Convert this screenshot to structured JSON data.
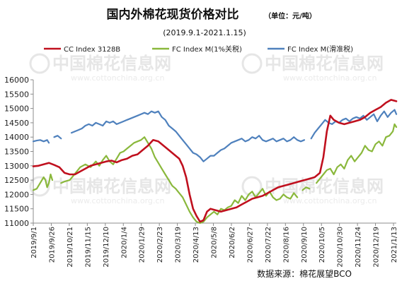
{
  "watermark": {
    "text": "中国棉花信息网",
    "url": "www.cottonchina.org.cn"
  },
  "chart_data": {
    "type": "line",
    "title": "国内外棉花现货价格对比",
    "unit_label": "（单位：元/吨）",
    "subtitle": "(2019.9.1-2021.1.15)",
    "source": "数据来源：棉花展望BCO",
    "ylim": [
      11000,
      16000
    ],
    "yticks": [
      11000,
      11500,
      12000,
      12500,
      13000,
      13500,
      14000,
      14500,
      15000,
      15500,
      16000
    ],
    "grid": false,
    "legend_position": "top",
    "x_tick_labels": [
      "2019/9/1",
      "2019/9/26",
      "2019/10/21",
      "2019/11/15",
      "2019/12/10",
      "2020/1/4",
      "2020/1/29",
      "2020/2/23",
      "2020/3/19",
      "2020/4/13",
      "2020/5/8",
      "2020/6/2",
      "2020/6/27",
      "2020/7/22",
      "2020/8/16",
      "2020/9/10",
      "2020/10/5",
      "2020/10/30",
      "2020/11/24",
      "2020/12/19",
      "2021/1/13"
    ],
    "series": [
      {
        "name": "CC Index 3128B",
        "color": "#c0101e",
        "width": 2.6,
        "points": [
          [
            0,
            12980
          ],
          [
            3,
            13000
          ],
          [
            6,
            13050
          ],
          [
            9,
            13100
          ],
          [
            12,
            13030
          ],
          [
            15,
            12950
          ],
          [
            18,
            12750
          ],
          [
            21,
            12700
          ],
          [
            24,
            12700
          ],
          [
            27,
            12800
          ],
          [
            30,
            12900
          ],
          [
            33,
            13000
          ],
          [
            36,
            13050
          ],
          [
            39,
            13100
          ],
          [
            42,
            13150
          ],
          [
            45,
            13180
          ],
          [
            48,
            13120
          ],
          [
            51,
            13200
          ],
          [
            54,
            13250
          ],
          [
            57,
            13350
          ],
          [
            60,
            13400
          ],
          [
            63,
            13550
          ],
          [
            66,
            13700
          ],
          [
            69,
            13900
          ],
          [
            72,
            13850
          ],
          [
            75,
            13700
          ],
          [
            78,
            13550
          ],
          [
            81,
            13400
          ],
          [
            84,
            13250
          ],
          [
            86,
            13000
          ],
          [
            88,
            12600
          ],
          [
            90,
            12000
          ],
          [
            92,
            11500
          ],
          [
            94,
            11250
          ],
          [
            96,
            11050
          ],
          [
            98,
            11100
          ],
          [
            100,
            11400
          ],
          [
            102,
            11500
          ],
          [
            105,
            11450
          ],
          [
            108,
            11400
          ],
          [
            111,
            11450
          ],
          [
            114,
            11500
          ],
          [
            117,
            11550
          ],
          [
            120,
            11650
          ],
          [
            123,
            11750
          ],
          [
            126,
            11850
          ],
          [
            129,
            11900
          ],
          [
            132,
            11950
          ],
          [
            135,
            12050
          ],
          [
            138,
            12150
          ],
          [
            141,
            12250
          ],
          [
            144,
            12300
          ],
          [
            147,
            12350
          ],
          [
            150,
            12400
          ],
          [
            153,
            12450
          ],
          [
            156,
            12500
          ],
          [
            159,
            12550
          ],
          [
            162,
            12600
          ],
          [
            165,
            12750
          ],
          [
            167,
            13300
          ],
          [
            169,
            14200
          ],
          [
            171,
            14750
          ],
          [
            173,
            14600
          ],
          [
            176,
            14500
          ],
          [
            179,
            14450
          ],
          [
            182,
            14500
          ],
          [
            185,
            14550
          ],
          [
            188,
            14600
          ],
          [
            191,
            14700
          ],
          [
            194,
            14850
          ],
          [
            197,
            14950
          ],
          [
            200,
            15050
          ],
          [
            203,
            15200
          ],
          [
            206,
            15300
          ],
          [
            209,
            15250
          ]
        ]
      },
      {
        "name": "FC Index M(1%关税)",
        "color": "#8ab83c",
        "width": 2.2,
        "segments": [
          [
            [
              0,
              12150
            ],
            [
              2,
              12200
            ],
            [
              4,
              12400
            ],
            [
              6,
              12600
            ],
            [
              7,
              12500
            ],
            [
              8,
              12250
            ],
            [
              9,
              12400
            ],
            [
              10,
              12700
            ],
            [
              11,
              12500
            ]
          ],
          [
            [
              16,
              12400
            ],
            [
              18,
              12450
            ],
            [
              21,
              12500
            ],
            [
              23,
              12650
            ],
            [
              25,
              12800
            ],
            [
              27,
              12950
            ],
            [
              30,
              13050
            ],
            [
              33,
              12950
            ],
            [
              36,
              13150
            ],
            [
              38,
              13000
            ],
            [
              40,
              13200
            ],
            [
              42,
              13350
            ],
            [
              44,
              13150
            ],
            [
              46,
              13050
            ],
            [
              48,
              13250
            ],
            [
              50,
              13450
            ],
            [
              52,
              13500
            ],
            [
              54,
              13600
            ],
            [
              56,
              13700
            ],
            [
              58,
              13800
            ],
            [
              60,
              13850
            ],
            [
              62,
              13900
            ],
            [
              64,
              14000
            ],
            [
              66,
              13800
            ],
            [
              68,
              13600
            ],
            [
              70,
              13300
            ],
            [
              72,
              13100
            ],
            [
              74,
              12900
            ],
            [
              76,
              12700
            ],
            [
              78,
              12500
            ],
            [
              80,
              12300
            ],
            [
              82,
              12200
            ],
            [
              84,
              12050
            ],
            [
              86,
              11900
            ],
            [
              88,
              11650
            ],
            [
              90,
              11400
            ],
            [
              92,
              11200
            ],
            [
              94,
              11050
            ],
            [
              96,
              11000
            ],
            [
              98,
              11050
            ],
            [
              100,
              11200
            ],
            [
              102,
              11300
            ],
            [
              104,
              11400
            ],
            [
              106,
              11300
            ],
            [
              108,
              11500
            ],
            [
              110,
              11450
            ],
            [
              112,
              11550
            ],
            [
              114,
              11600
            ],
            [
              116,
              11800
            ],
            [
              118,
              11700
            ],
            [
              120,
              11950
            ],
            [
              122,
              11800
            ],
            [
              124,
              12000
            ],
            [
              126,
              12100
            ],
            [
              128,
              11900
            ],
            [
              130,
              12050
            ],
            [
              132,
              12200
            ],
            [
              134,
              11950
            ],
            [
              136,
              12100
            ],
            [
              138,
              11900
            ],
            [
              140,
              11800
            ],
            [
              142,
              11850
            ],
            [
              144,
              12000
            ],
            [
              146,
              11900
            ],
            [
              148,
              11850
            ],
            [
              150,
              12050
            ],
            [
              152,
              11900
            ]
          ],
          [
            [
              155,
              12150
            ],
            [
              157,
              12250
            ],
            [
              159,
              12200
            ]
          ],
          [
            [
              163,
              12400
            ],
            [
              165,
              12550
            ],
            [
              167,
              12700
            ],
            [
              169,
              12850
            ],
            [
              171,
              12900
            ],
            [
              173,
              12700
            ],
            [
              175,
              12950
            ],
            [
              177,
              13050
            ],
            [
              179,
              12900
            ],
            [
              181,
              13200
            ],
            [
              183,
              13350
            ],
            [
              185,
              13150
            ],
            [
              187,
              13300
            ],
            [
              189,
              13450
            ],
            [
              191,
              13700
            ],
            [
              193,
              13550
            ],
            [
              195,
              13500
            ],
            [
              197,
              13750
            ],
            [
              199,
              13850
            ],
            [
              201,
              13700
            ],
            [
              203,
              14000
            ],
            [
              205,
              14050
            ],
            [
              207,
              14200
            ],
            [
              208,
              14450
            ],
            [
              209,
              14350
            ]
          ]
        ]
      },
      {
        "name": "FC Index M(滑准税)",
        "color": "#4f81bd",
        "width": 2.2,
        "segments": [
          [
            [
              0,
              13850
            ],
            [
              2,
              13880
            ],
            [
              4,
              13900
            ],
            [
              6,
              13850
            ],
            [
              8,
              13900
            ],
            [
              9,
              13800
            ]
          ],
          [
            [
              12,
              14000
            ],
            [
              14,
              14050
            ],
            [
              16,
              13950
            ]
          ],
          [
            [
              22,
              14150
            ],
            [
              24,
              14200
            ],
            [
              26,
              14250
            ],
            [
              28,
              14300
            ],
            [
              30,
              14400
            ],
            [
              32,
              14450
            ],
            [
              34,
              14400
            ],
            [
              36,
              14500
            ],
            [
              38,
              14450
            ],
            [
              40,
              14400
            ],
            [
              42,
              14550
            ],
            [
              44,
              14500
            ],
            [
              46,
              14550
            ],
            [
              48,
              14450
            ],
            [
              50,
              14500
            ],
            [
              52,
              14550
            ],
            [
              54,
              14600
            ],
            [
              56,
              14650
            ],
            [
              58,
              14700
            ],
            [
              60,
              14750
            ],
            [
              62,
              14800
            ],
            [
              64,
              14850
            ],
            [
              66,
              14800
            ],
            [
              68,
              14900
            ],
            [
              70,
              14850
            ],
            [
              72,
              14900
            ],
            [
              74,
              14700
            ],
            [
              76,
              14600
            ],
            [
              78,
              14400
            ],
            [
              80,
              14300
            ],
            [
              82,
              14200
            ],
            [
              84,
              14050
            ],
            [
              86,
              13900
            ],
            [
              88,
              13750
            ],
            [
              90,
              13600
            ],
            [
              92,
              13450
            ],
            [
              94,
              13400
            ],
            [
              96,
              13300
            ],
            [
              98,
              13150
            ],
            [
              100,
              13250
            ],
            [
              102,
              13350
            ],
            [
              104,
              13350
            ],
            [
              106,
              13450
            ],
            [
              108,
              13550
            ],
            [
              110,
              13600
            ],
            [
              112,
              13700
            ],
            [
              114,
              13800
            ],
            [
              116,
              13850
            ],
            [
              118,
              13900
            ],
            [
              120,
              13950
            ],
            [
              122,
              13850
            ],
            [
              124,
              13900
            ],
            [
              126,
              14000
            ],
            [
              128,
              13950
            ],
            [
              130,
              14050
            ],
            [
              132,
              13900
            ],
            [
              134,
              13850
            ],
            [
              136,
              13900
            ],
            [
              138,
              13950
            ],
            [
              140,
              13850
            ],
            [
              142,
              13900
            ],
            [
              144,
              13950
            ],
            [
              146,
              13850
            ],
            [
              148,
              13900
            ],
            [
              150,
              14000
            ],
            [
              152,
              13900
            ],
            [
              154,
              13850
            ],
            [
              156,
              13900
            ]
          ],
          [
            [
              160,
              13950
            ],
            [
              162,
              14150
            ],
            [
              164,
              14300
            ],
            [
              166,
              14450
            ],
            [
              168,
              14600
            ],
            [
              170,
              14500
            ],
            [
              172,
              14450
            ],
            [
              174,
              14550
            ],
            [
              176,
              14500
            ],
            [
              178,
              14600
            ],
            [
              180,
              14650
            ],
            [
              182,
              14550
            ],
            [
              184,
              14650
            ],
            [
              186,
              14700
            ],
            [
              188,
              14650
            ],
            [
              190,
              14750
            ],
            [
              192,
              14600
            ],
            [
              194,
              14700
            ],
            [
              196,
              14800
            ],
            [
              198,
              14550
            ],
            [
              200,
              14750
            ],
            [
              202,
              14900
            ],
            [
              204,
              14700
            ],
            [
              206,
              14850
            ],
            [
              208,
              14950
            ],
            [
              209,
              14800
            ]
          ]
        ]
      }
    ]
  }
}
